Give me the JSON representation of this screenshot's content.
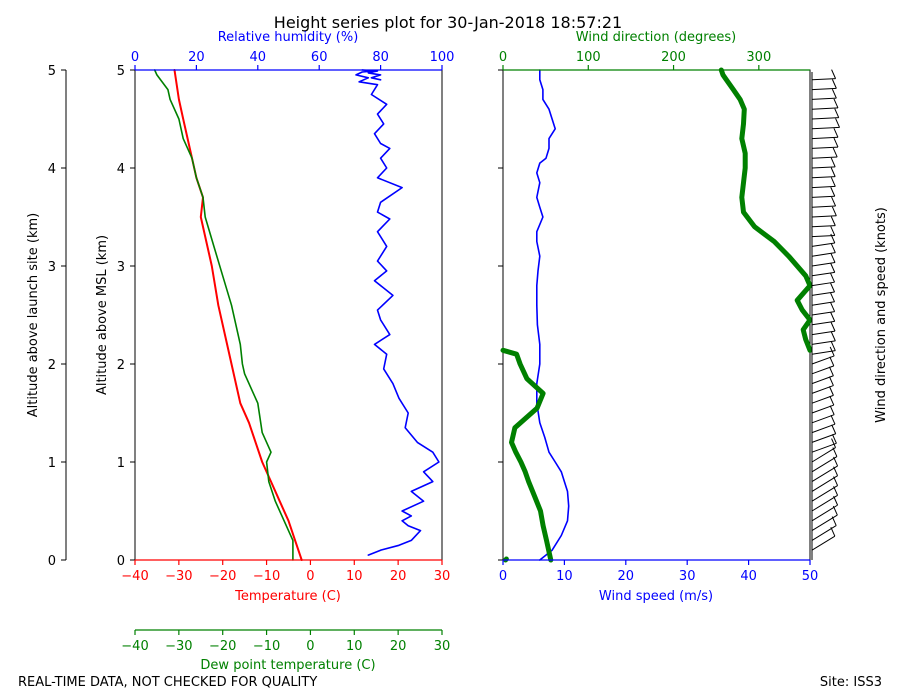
{
  "title": "Height series plot for 30-Jan-2018 18:57:21",
  "footer": {
    "left": "REAL-TIME DATA, NOT CHECKED FOR QUALITY",
    "right": "Site: ISS3"
  },
  "colors": {
    "red": "#ff0000",
    "green": "#008000",
    "blue": "#0000ff",
    "black": "#000000"
  },
  "chart_data": [
    {
      "type": "line",
      "panel": "thermo",
      "ylabel_outer": "Altitude above launch site (km)",
      "ylabel_inner": "Altitude above MSL (km)",
      "ylim": [
        0,
        5
      ],
      "yticks": [
        "0",
        "1",
        "2",
        "3",
        "4",
        "5"
      ],
      "x_temp": {
        "label": "Temperature (C)",
        "lim": [
          -40,
          30
        ],
        "ticks": [
          "−40",
          "−30",
          "−20",
          "−10",
          "0",
          "10",
          "20",
          "30"
        ]
      },
      "x_dew": {
        "label": "Dew point temperature (C)",
        "lim": [
          -40,
          30
        ],
        "ticks": [
          "−40",
          "−30",
          "−20",
          "−10",
          "0",
          "10",
          "20",
          "30"
        ]
      },
      "x_rh": {
        "label": "Relative humidity (%)",
        "lim": [
          0,
          100
        ],
        "ticks": [
          "0",
          "20",
          "40",
          "60",
          "80",
          "100"
        ]
      },
      "series": [
        {
          "name": "Temperature",
          "axis": "temp",
          "x": [
            -2,
            -3.5,
            -5,
            -7,
            -9,
            -11,
            -12.5,
            -14,
            -16,
            -17,
            -18,
            -19,
            -21,
            -22.5,
            -24,
            -25,
            -24.5,
            -26,
            -27,
            -28,
            -29,
            -30,
            -31
          ],
          "y": [
            0,
            0.2,
            0.4,
            0.6,
            0.8,
            1.0,
            1.2,
            1.4,
            1.6,
            1.8,
            2.0,
            2.2,
            2.6,
            3.0,
            3.3,
            3.5,
            3.7,
            3.9,
            4.1,
            4.3,
            4.5,
            4.7,
            5.0
          ]
        },
        {
          "name": "Dew point",
          "axis": "dew",
          "x": [
            -4,
            -4,
            -6,
            -8,
            -9.5,
            -10,
            -9,
            -11,
            -12,
            -13,
            -15,
            -15.5,
            -16,
            -17,
            -18,
            -20,
            -22,
            -24,
            -24.5,
            -26,
            -27,
            -29,
            -30,
            -32,
            -32.5,
            -35,
            -35.5
          ],
          "y": [
            0,
            0.2,
            0.4,
            0.6,
            0.8,
            1.0,
            1.1,
            1.3,
            1.6,
            1.7,
            1.9,
            2.0,
            2.2,
            2.4,
            2.6,
            2.9,
            3.2,
            3.5,
            3.7,
            3.9,
            4.1,
            4.3,
            4.5,
            4.7,
            4.8,
            4.95,
            5.0
          ]
        },
        {
          "name": "Relative humidity",
          "axis": "rh",
          "x": [
            76,
            80,
            86,
            90,
            93,
            89,
            87,
            90,
            87,
            94,
            90,
            97,
            94,
            99,
            97,
            92,
            88,
            89,
            86,
            84,
            81,
            82,
            78,
            83,
            80,
            79,
            84,
            78,
            82,
            79,
            82,
            79,
            83,
            79,
            80,
            87,
            79,
            82,
            80,
            83,
            80,
            78,
            81,
            79,
            82,
            77,
            79,
            73,
            76,
            72,
            74,
            78,
            74,
            79,
            76,
            80,
            77,
            80
          ],
          "y": [
            0.05,
            0.1,
            0.15,
            0.2,
            0.3,
            0.35,
            0.4,
            0.45,
            0.5,
            0.6,
            0.7,
            0.8,
            0.9,
            1.0,
            1.1,
            1.2,
            1.35,
            1.5,
            1.65,
            1.8,
            1.95,
            2.1,
            2.2,
            2.3,
            2.45,
            2.55,
            2.7,
            2.85,
            2.95,
            3.05,
            3.2,
            3.35,
            3.48,
            3.55,
            3.65,
            3.8,
            3.9,
            4.0,
            4.1,
            4.2,
            4.25,
            4.35,
            4.45,
            4.55,
            4.65,
            4.75,
            4.85,
            4.88,
            4.92,
            4.95,
            4.98,
            4.99,
            5.0,
            4.99,
            4.97,
            4.95,
            4.92,
            4.9
          ]
        }
      ]
    },
    {
      "type": "line",
      "panel": "wind",
      "x_speed": {
        "label": "Wind speed (m/s)",
        "lim": [
          0,
          50
        ],
        "ticks": [
          "0",
          "10",
          "20",
          "30",
          "40",
          "50"
        ]
      },
      "x_dir": {
        "label": "Wind direction (degrees)",
        "lim": [
          0,
          360
        ],
        "ticks": [
          "0",
          "100",
          "200",
          "300"
        ]
      },
      "barb_label": "Wind direction and speed (knots)",
      "ylim": [
        0,
        5
      ],
      "series": [
        {
          "name": "Wind speed",
          "axis": "speed",
          "x": [
            6,
            8,
            9.5,
            10.5,
            10.7,
            10.5,
            10,
            9.5,
            8.5,
            7.5,
            6.8,
            6,
            5.5,
            5.5,
            6,
            6,
            5.6,
            5.5,
            5.5,
            5.7,
            6,
            5.5,
            5.5,
            6.5,
            6,
            5.5,
            6,
            5.5,
            6,
            7,
            7.5,
            7.5,
            8.5,
            8,
            7.5,
            6.5,
            6.5,
            6,
            6
          ],
          "y": [
            0.0,
            0.1,
            0.25,
            0.4,
            0.55,
            0.7,
            0.8,
            0.9,
            1.0,
            1.1,
            1.25,
            1.4,
            1.6,
            1.8,
            2.0,
            2.2,
            2.4,
            2.6,
            2.8,
            2.95,
            3.1,
            3.25,
            3.35,
            3.5,
            3.6,
            3.7,
            3.85,
            3.95,
            4.05,
            4.1,
            4.2,
            4.3,
            4.4,
            4.5,
            4.6,
            4.7,
            4.8,
            4.9,
            5.0
          ]
        },
        {
          "name": "Wind direction low",
          "axis": "dir",
          "x": [
            56,
            51,
            47,
            44,
            37,
            30,
            26,
            21,
            15,
            10,
            14,
            40,
            47,
            28,
            20,
            16,
            0
          ],
          "y": [
            0.0,
            0.2,
            0.35,
            0.5,
            0.65,
            0.8,
            0.9,
            1.0,
            1.1,
            1.2,
            1.35,
            1.55,
            1.7,
            1.85,
            2.0,
            2.1,
            2.14
          ]
        },
        {
          "name": "Wind direction high",
          "axis": "dir",
          "x": [
            360,
            355,
            352,
            360,
            351,
            345,
            360,
            355,
            335,
            318,
            295,
            282,
            280,
            282,
            284,
            284,
            280,
            282,
            283,
            278,
            270,
            262,
            258,
            256
          ],
          "y": [
            2.14,
            2.25,
            2.35,
            2.45,
            2.55,
            2.65,
            2.8,
            2.9,
            3.1,
            3.25,
            3.4,
            3.55,
            3.7,
            3.85,
            4.0,
            4.15,
            4.3,
            4.45,
            4.6,
            4.7,
            4.8,
            4.9,
            4.95,
            5.0
          ]
        },
        {
          "name": "Wind direction surface",
          "axis": "dir",
          "x": [
            3,
            4
          ],
          "y": [
            0.0,
            0.01
          ]
        }
      ]
    }
  ]
}
